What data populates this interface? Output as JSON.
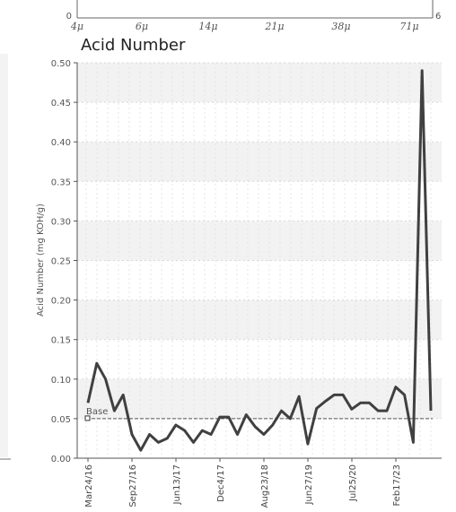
{
  "top_strip": {
    "left_value": "0",
    "right_value": "6",
    "ticks": [
      "4μ",
      "6μ",
      "14μ",
      "21μ",
      "38μ",
      "71μ"
    ]
  },
  "chart_data": {
    "type": "line",
    "title": "Acid Number",
    "xlabel": "",
    "ylabel": "Acid Number (mg KOH/g)",
    "ylim": [
      0,
      0.5
    ],
    "y_ticks": [
      "0.00",
      "0.05",
      "0.10",
      "0.15",
      "0.20",
      "0.25",
      "0.30",
      "0.35",
      "0.40",
      "0.45",
      "0.50"
    ],
    "x_tick_labels": [
      "Mar24/16",
      "Sep27/16",
      "Jun13/17",
      "Dec4/17",
      "Aug23/18",
      "Jun27/19",
      "Jul25/20",
      "Feb17/23"
    ],
    "grid": true,
    "baseline": {
      "label": "Base",
      "value": 0.05
    },
    "series": [
      {
        "values": [
          0.07,
          0.12,
          0.1,
          0.06,
          0.08,
          0.03,
          0.01,
          0.03,
          0.02,
          0.025,
          0.042,
          0.035,
          0.02,
          0.035,
          0.03,
          0.052,
          0.052,
          0.03,
          0.055,
          0.04,
          0.03,
          0.042,
          0.06,
          0.05,
          0.078,
          0.018,
          0.063,
          0.072,
          0.08,
          0.08,
          0.062,
          0.07,
          0.07,
          0.06,
          0.06,
          0.09,
          0.08,
          0.02,
          0.49,
          0.06
        ]
      }
    ],
    "colors": {
      "line": "#404040",
      "baseline": "#555555",
      "band": "#f2f2f2",
      "grid": "#d8d8d8"
    }
  }
}
